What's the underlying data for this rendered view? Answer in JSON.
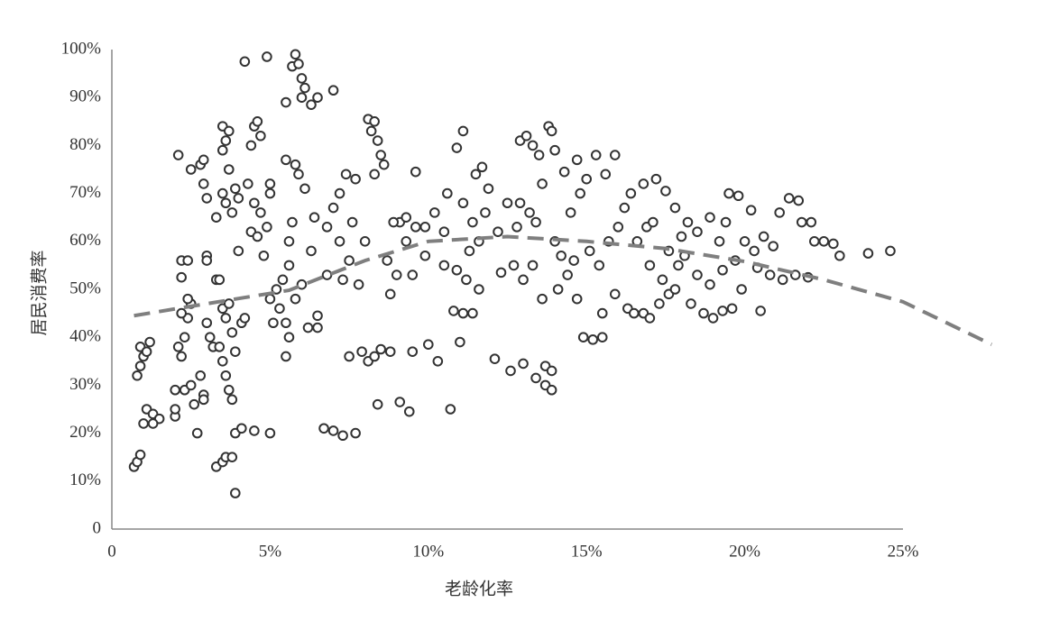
{
  "chart_data": {
    "type": "scatter",
    "x_label": "老龄化率",
    "y_label": "居民消费率",
    "xlim": [
      0,
      25
    ],
    "ylim": [
      0,
      100
    ],
    "xticks": [
      0,
      {
        "value": 5,
        "label": "5%"
      },
      {
        "value": 10,
        "label": "10%"
      },
      {
        "value": 15,
        "label": "15%"
      },
      {
        "value": 20,
        "label": "20%"
      },
      {
        "value": 25,
        "label": "25%"
      }
    ],
    "yticks": [
      0,
      {
        "value": 10,
        "label": "10%"
      },
      {
        "value": 20,
        "label": "20%"
      },
      {
        "value": 30,
        "label": "30%"
      },
      {
        "value": 40,
        "label": "40%"
      },
      {
        "value": 50,
        "label": "50%"
      },
      {
        "value": 60,
        "label": "60%"
      },
      {
        "value": 70,
        "label": "70%"
      },
      {
        "value": 80,
        "label": "80%"
      },
      {
        "value": 90,
        "label": "90%"
      },
      {
        "value": 100,
        "label": "100%"
      }
    ],
    "grid": false,
    "series": [
      {
        "type": "scatter",
        "color": "#333333",
        "x": [
          0.7,
          0.8,
          0.9,
          0.8,
          0.9,
          1,
          0.9,
          1.1,
          1.2,
          1.1,
          1.3,
          1.5,
          1,
          1.3,
          2,
          2,
          2,
          2.3,
          2.5,
          2.6,
          2.7,
          2.2,
          2.1,
          2.3,
          2.4,
          2.2,
          2.5,
          2.4,
          2.2,
          2.2,
          2.4,
          2.1,
          2.5,
          2.8,
          2.9,
          2.9,
          3,
          3,
          3,
          3,
          3.1,
          2.8,
          2.9,
          2.9,
          3.3,
          3.5,
          3.6,
          3.8,
          3.9,
          3.9,
          3.6,
          3.7,
          3.8,
          3.5,
          3.9,
          3.8,
          3.5,
          3.7,
          3.3,
          3.4,
          3.3,
          3.6,
          3.5,
          3.8,
          3.7,
          3.5,
          3.6,
          3.5,
          3.7,
          3.9,
          4,
          4,
          3.2,
          3.4,
          3.6,
          4.1,
          4.2,
          4.1,
          4.5,
          4.4,
          4.6,
          4.3,
          4.5,
          4.7,
          4.8,
          4.9,
          4.4,
          4.5,
          4.6,
          4.7,
          4.2,
          4.9,
          5,
          5.1,
          5,
          5.2,
          5,
          5,
          5.3,
          5.5,
          5.6,
          5.5,
          5.4,
          5.6,
          5.6,
          5.7,
          5.5,
          5.8,
          5.9,
          5.7,
          5.8,
          5.9,
          5.5,
          6,
          6.1,
          6,
          6.3,
          6.5,
          5.8,
          6,
          6.2,
          6.3,
          6.4,
          6.1,
          6.5,
          6.5,
          6.7,
          7,
          7.3,
          7.7,
          7.5,
          7.9,
          7,
          6.8,
          7,
          7.2,
          7.4,
          7.7,
          7.2,
          7.5,
          7.8,
          6.8,
          7.3,
          7.6,
          8,
          8.1,
          8.2,
          8.3,
          8.4,
          8.5,
          8.3,
          8.6,
          8.1,
          8.3,
          8.5,
          8.8,
          8.4,
          9.1,
          9.4,
          9.5,
          9.1,
          8.9,
          9.3,
          9.6,
          8.8,
          8.7,
          9,
          9.5,
          9.9,
          9.3,
          9.6,
          10,
          10.3,
          9.9,
          10.2,
          10.5,
          10.7,
          11,
          10.8,
          11.1,
          11.4,
          10.5,
          10.9,
          11.2,
          11.6,
          10.9,
          11.1,
          11.5,
          11.7,
          11.9,
          11.1,
          11.4,
          11.6,
          11.3,
          10.6,
          11.8,
          12.1,
          12.6,
          13,
          13.4,
          13.7,
          13.7,
          13.9,
          13.9,
          12.3,
          12.7,
          13,
          13.3,
          13.6,
          12.8,
          13.2,
          13.4,
          12.9,
          13.1,
          13.3,
          13.5,
          13.8,
          13.9,
          14,
          12.5,
          12.9,
          13.6,
          14,
          12.2,
          14.1,
          14.4,
          14.7,
          14.9,
          15.2,
          15.5,
          15.5,
          14.5,
          14.8,
          15,
          14.3,
          14.7,
          15.3,
          15.6,
          15.9,
          14.2,
          14.6,
          15.1,
          15.4,
          15.7,
          16,
          16.2,
          15.9,
          16.3,
          16.5,
          16.8,
          17,
          17.3,
          17.6,
          16.4,
          16.8,
          17.2,
          17.5,
          17.8,
          16.6,
          17,
          17.4,
          17.8,
          16.9,
          17.6,
          18,
          17.1,
          18.2,
          17.9,
          18.3,
          18.7,
          19,
          19.3,
          19.6,
          18.5,
          18.9,
          19.3,
          19.7,
          18.5,
          18.9,
          19.2,
          19.5,
          19.8,
          19.4,
          20,
          19.9,
          18.1,
          20.3,
          20.6,
          20.9,
          21.1,
          21.4,
          21.7,
          20.2,
          20.5,
          20.8,
          21.2,
          21.6,
          22,
          20.4,
          21.8,
          22.1,
          22.2,
          22.5,
          22.8,
          23,
          23.9,
          24.6
        ],
        "values": [
          13,
          14,
          15.5,
          32,
          34,
          36,
          38,
          37,
          39,
          25,
          24,
          23,
          22,
          22,
          23.5,
          25,
          29,
          29,
          30,
          26,
          20,
          36,
          38,
          40,
          44,
          45,
          47,
          48,
          52.5,
          56,
          56,
          78,
          75,
          76,
          77,
          72,
          69,
          57,
          56,
          43,
          40,
          32,
          28,
          27,
          13,
          14,
          15,
          15,
          7.5,
          20,
          32,
          29,
          27,
          35,
          37,
          41,
          46,
          47,
          52,
          52,
          65,
          68,
          70,
          66,
          75,
          79,
          81,
          84,
          83,
          71,
          69,
          58,
          38,
          38,
          44,
          43,
          44,
          21,
          20.5,
          62,
          61,
          72,
          68,
          66,
          57,
          63,
          80,
          84,
          85,
          82,
          97.5,
          98.5,
          20,
          43,
          48,
          50,
          72,
          70,
          46,
          36,
          40,
          43,
          52,
          55,
          60,
          64,
          77,
          76,
          74,
          96.5,
          99,
          97,
          89,
          94,
          92,
          90,
          88.5,
          90,
          48,
          51,
          42,
          58,
          65,
          71,
          42,
          44.5,
          21,
          20.5,
          19.5,
          20,
          36,
          37,
          91.5,
          63,
          67,
          70,
          74,
          73,
          60,
          56,
          51,
          53,
          52,
          64,
          60,
          85.5,
          83,
          85,
          81,
          78,
          74,
          76,
          35,
          36,
          37.5,
          37,
          26,
          26.5,
          24.5,
          37,
          64,
          64,
          65,
          63,
          49,
          56,
          53,
          53,
          57,
          60,
          74.5,
          38.5,
          35,
          63,
          66,
          62,
          25,
          39,
          45.5,
          45,
          45,
          55,
          54,
          52,
          50,
          79.5,
          83,
          74,
          75.5,
          71,
          68,
          64,
          60,
          58,
          70,
          66,
          35.5,
          33,
          34.5,
          31.5,
          30,
          34,
          33,
          29,
          53.5,
          55,
          52,
          55,
          48,
          63,
          66,
          64,
          81,
          82,
          80,
          78,
          84,
          83,
          79,
          68,
          68,
          72,
          60,
          62,
          50,
          53,
          48,
          40,
          39.5,
          40,
          45,
          66,
          70,
          73,
          74.5,
          77,
          78,
          74,
          78,
          57,
          56,
          58,
          55,
          60,
          63,
          67,
          49,
          46,
          45,
          45,
          44,
          47,
          49,
          70,
          72,
          73,
          70.5,
          67,
          60,
          55,
          52,
          50,
          63,
          58,
          61,
          64,
          64,
          55,
          47,
          45,
          44,
          45.5,
          46,
          53,
          51,
          54,
          56,
          62,
          65,
          60,
          70,
          69.5,
          64,
          60,
          50,
          57,
          58,
          61,
          59,
          66,
          69,
          68.5,
          66.5,
          45.5,
          53,
          52,
          53,
          52.5,
          54.5,
          64,
          64,
          60,
          60,
          59.5,
          57,
          57.5,
          58
        ]
      },
      {
        "type": "line",
        "color": "#7f7f7f",
        "dashed": true,
        "x": [
          0.7,
          3,
          5.6,
          8,
          10,
          12.5,
          15,
          17.5,
          20,
          22.5,
          25,
          27.8
        ],
        "values": [
          44.5,
          47,
          49.8,
          56,
          60,
          61,
          60,
          58.5,
          55.8,
          52,
          47.4,
          38.5
        ]
      }
    ]
  }
}
